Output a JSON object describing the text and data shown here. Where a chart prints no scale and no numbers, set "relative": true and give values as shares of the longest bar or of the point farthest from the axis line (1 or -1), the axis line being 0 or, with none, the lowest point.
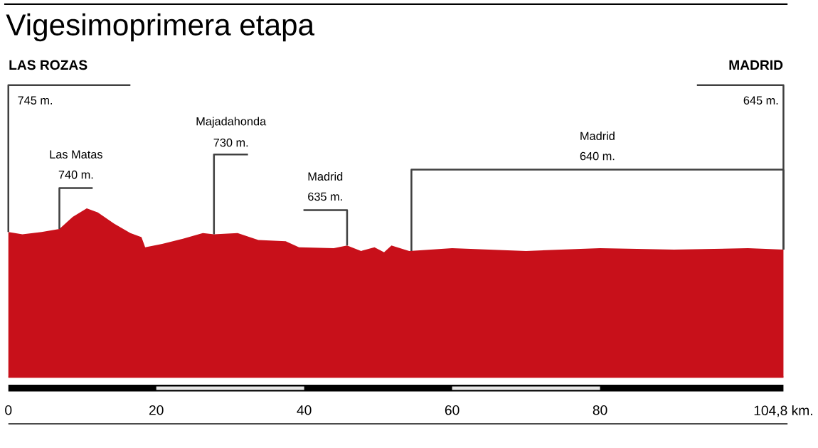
{
  "chart_data": {
    "type": "area",
    "title": "Vigesimoprimera etapa",
    "relative": true,
    "color": "#c8101a",
    "x": [
      0,
      1.9,
      4.5,
      6.9,
      8.7,
      10.6,
      12.1,
      14.3,
      16.5,
      18,
      18.5,
      20.8,
      23.6,
      26.3,
      27.8,
      31,
      33.8,
      37.5,
      39.3,
      44,
      45.8,
      47.7,
      49.5,
      50.8,
      51.8,
      54.2,
      60,
      70,
      80,
      90,
      100,
      104.8
    ],
    "values": [
      0.86,
      0.846,
      0.86,
      0.878,
      0.95,
      1,
      0.976,
      0.91,
      0.854,
      0.83,
      0.77,
      0.79,
      0.82,
      0.854,
      0.846,
      0.854,
      0.813,
      0.805,
      0.77,
      0.764,
      0.78,
      0.748,
      0.77,
      0.74,
      0.78,
      0.748,
      0.764,
      0.748,
      0.764,
      0.756,
      0.764,
      0.756
    ],
    "xlim": [
      0,
      104.8
    ],
    "xticks": [
      0,
      20,
      40,
      60,
      80,
      {
        "value": 104.8,
        "label": "104,8 km."
      }
    ],
    "annotations": [
      "LAS ROZAS",
      {
        "text": "745 m.",
        "x": 0,
        "y": 0.86
      },
      "Las Matas",
      {
        "text": "740 m.",
        "x": 6.9,
        "y": 0.878
      },
      "Majadahonda",
      {
        "text": "730 m.",
        "x": 27.8,
        "y": 0.846
      },
      "Madrid",
      {
        "text": "635 m.",
        "x": 45.8,
        "y": 0.78
      },
      "Madrid",
      {
        "text": "640 m.",
        "x": 54.5,
        "y": 0.748
      },
      "MADRID",
      {
        "text": "645 m.",
        "x": 104.8,
        "y": 0.756
      }
    ]
  }
}
